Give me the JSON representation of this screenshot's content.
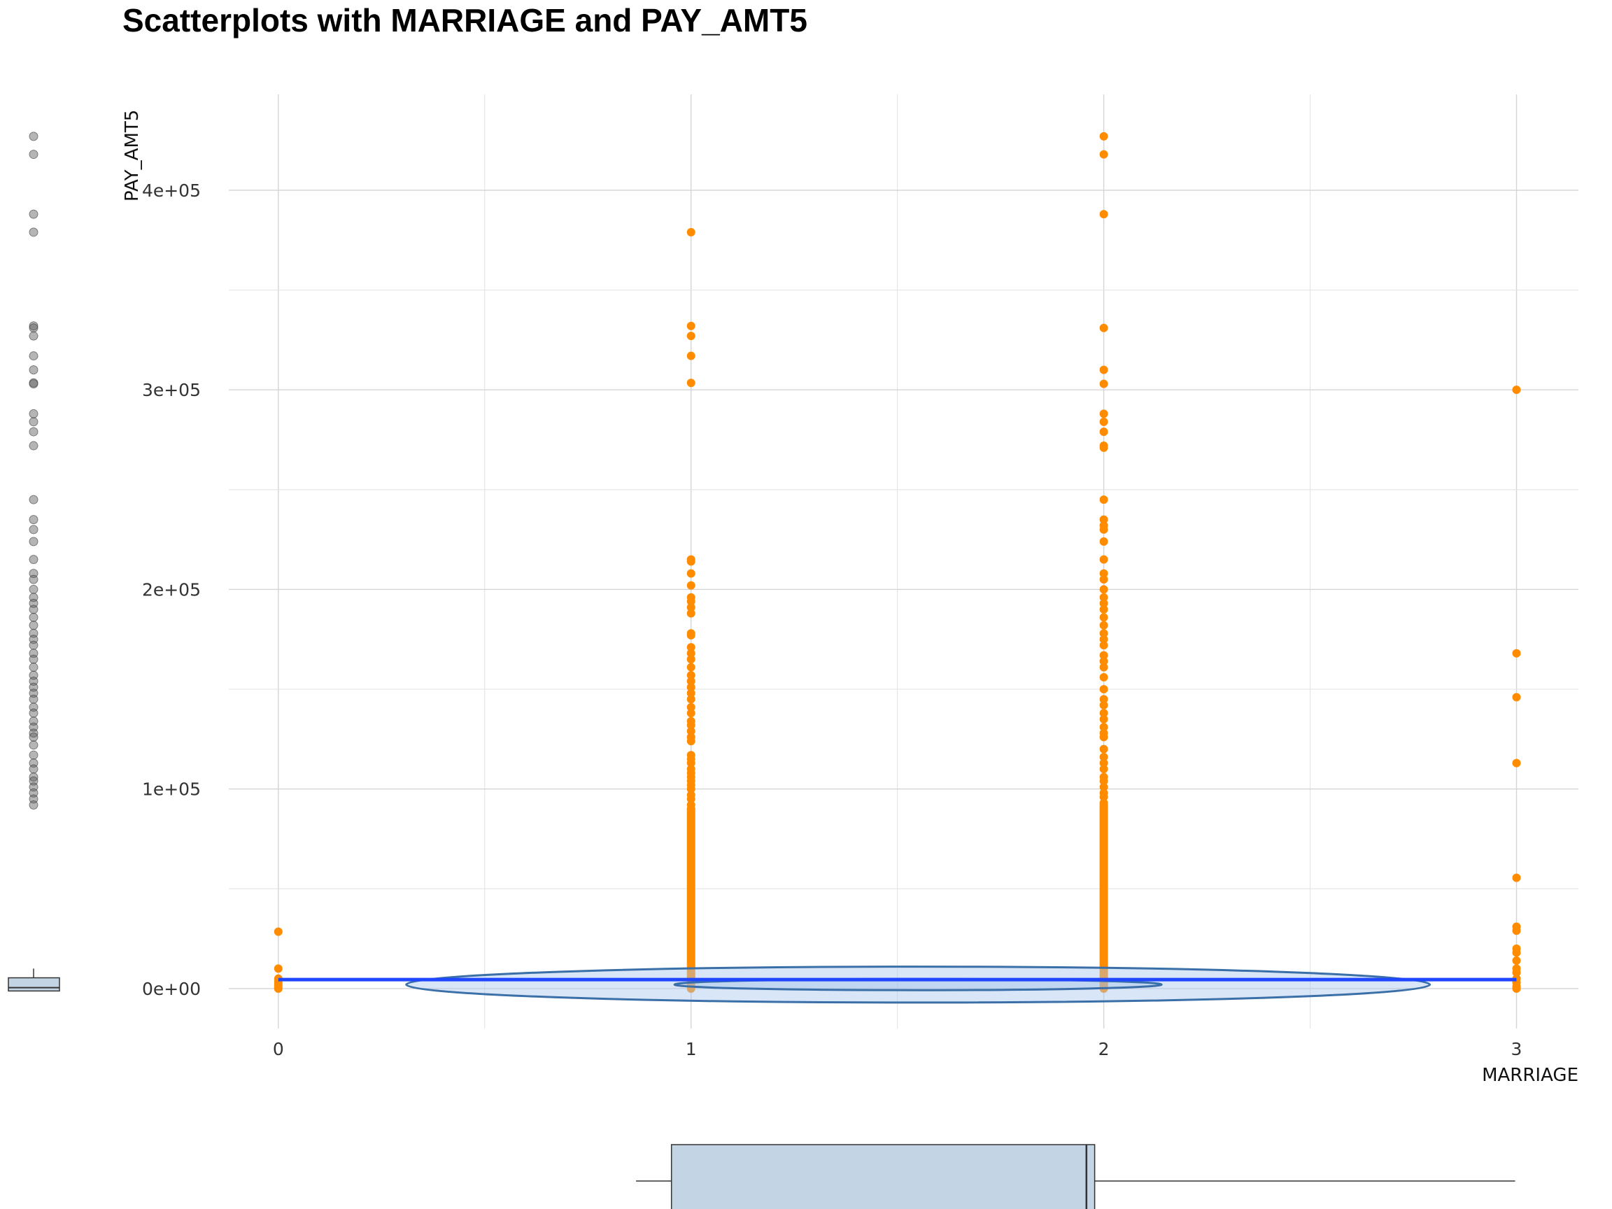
{
  "chart_data": {
    "type": "scatter",
    "title": "Scatterplots with MARRIAGE and PAY_AMT5",
    "xlabel": "MARRIAGE",
    "ylabel": "PAY_AMT5",
    "xlim": [
      -0.12,
      3.15
    ],
    "ylim": [
      -20000,
      448000
    ],
    "x_ticks": [
      0,
      1,
      2,
      3
    ],
    "x_tick_labels": [
      "0",
      "1",
      "2",
      "3"
    ],
    "y_ticks": [
      0,
      100000,
      200000,
      300000,
      400000
    ],
    "y_tick_labels": [
      "0e+00",
      "1e+05",
      "2e+05",
      "3e+05",
      "4e+05"
    ],
    "grid": true,
    "point_color": "#ff8c00",
    "smooth_color": "#2046ff",
    "density_color": "#3a6fa8",
    "boxplot_fill": "#c3d4e4",
    "series": [
      {
        "name": "PAY_AMT5",
        "points": [
          [
            0,
            0
          ],
          [
            0,
            1000
          ],
          [
            0,
            2000
          ],
          [
            0,
            3000
          ],
          [
            0,
            4000
          ],
          [
            0,
            5000
          ],
          [
            0,
            10000
          ],
          [
            0,
            28500
          ],
          [
            1,
            379000
          ],
          [
            1,
            332000
          ],
          [
            1,
            327000
          ],
          [
            1,
            317000
          ],
          [
            1,
            303500
          ],
          [
            1,
            215000
          ],
          [
            1,
            214000
          ],
          [
            1,
            208000
          ],
          [
            1,
            202000
          ],
          [
            1,
            196000
          ],
          [
            1,
            194000
          ],
          [
            1,
            191000
          ],
          [
            1,
            188000
          ],
          [
            1,
            178000
          ],
          [
            1,
            177000
          ],
          [
            1,
            171000
          ],
          [
            1,
            168000
          ],
          [
            1,
            165000
          ],
          [
            1,
            161000
          ],
          [
            1,
            157000
          ],
          [
            1,
            154000
          ],
          [
            1,
            151000
          ],
          [
            1,
            148000
          ],
          [
            1,
            145000
          ],
          [
            1,
            141000
          ],
          [
            1,
            138000
          ],
          [
            1,
            134000
          ],
          [
            1,
            132000
          ],
          [
            1,
            129000
          ],
          [
            1,
            126000
          ],
          [
            1,
            124000
          ],
          [
            1,
            117000
          ],
          [
            1,
            115000
          ],
          [
            1,
            113000
          ],
          [
            1,
            110000
          ],
          [
            1,
            108000
          ],
          [
            1,
            106000
          ],
          [
            1,
            104000
          ],
          [
            1,
            102000
          ],
          [
            1,
            100000
          ],
          [
            1,
            97000
          ],
          [
            1,
            95000
          ],
          [
            1,
            92000
          ],
          [
            1,
            90000
          ],
          [
            2,
            427000
          ],
          [
            2,
            418000
          ],
          [
            2,
            388000
          ],
          [
            2,
            331000
          ],
          [
            2,
            310000
          ],
          [
            2,
            303000
          ],
          [
            2,
            288000
          ],
          [
            2,
            284000
          ],
          [
            2,
            279000
          ],
          [
            2,
            272000
          ],
          [
            2,
            271000
          ],
          [
            2,
            245000
          ],
          [
            2,
            235000
          ],
          [
            2,
            232000
          ],
          [
            2,
            230000
          ],
          [
            2,
            224000
          ],
          [
            2,
            215000
          ],
          [
            2,
            208000
          ],
          [
            2,
            205000
          ],
          [
            2,
            200000
          ],
          [
            2,
            196000
          ],
          [
            2,
            193000
          ],
          [
            2,
            190000
          ],
          [
            2,
            186000
          ],
          [
            2,
            182000
          ],
          [
            2,
            178000
          ],
          [
            2,
            175000
          ],
          [
            2,
            172000
          ],
          [
            2,
            167000
          ],
          [
            2,
            164000
          ],
          [
            2,
            161000
          ],
          [
            2,
            156000
          ],
          [
            2,
            150000
          ],
          [
            2,
            145000
          ],
          [
            2,
            142000
          ],
          [
            2,
            138000
          ],
          [
            2,
            135000
          ],
          [
            2,
            131000
          ],
          [
            2,
            128000
          ],
          [
            2,
            126000
          ],
          [
            2,
            120000
          ],
          [
            2,
            116000
          ],
          [
            2,
            113000
          ],
          [
            2,
            110000
          ],
          [
            2,
            106000
          ],
          [
            2,
            104000
          ],
          [
            2,
            101000
          ],
          [
            2,
            98000
          ],
          [
            2,
            96000
          ],
          [
            2,
            93000
          ],
          [
            3,
            300000
          ],
          [
            3,
            168000
          ],
          [
            3,
            146000
          ],
          [
            3,
            113000
          ],
          [
            3,
            55500
          ],
          [
            3,
            31000
          ],
          [
            3,
            29000
          ],
          [
            3,
            20000
          ],
          [
            3,
            18000
          ],
          [
            3,
            14000
          ],
          [
            3,
            10000
          ],
          [
            3,
            8000
          ],
          [
            3,
            5000
          ],
          [
            3,
            3000
          ],
          [
            3,
            1000
          ],
          [
            3,
            0
          ]
        ],
        "dense_columns": [
          {
            "x": 1,
            "from": 0,
            "to": 90000
          },
          {
            "x": 2,
            "from": 0,
            "to": 92000
          }
        ]
      }
    ],
    "smooth_line": [
      [
        0,
        4500
      ],
      [
        3,
        4500
      ]
    ],
    "density_ellipses": [
      {
        "cx": 1.55,
        "cy": 2000,
        "rx": 1.24,
        "ry": 9000
      },
      {
        "cx": 1.55,
        "cy": 2000,
        "rx": 0.59,
        "ry": 2800
      }
    ],
    "marginal_y_boxplot": {
      "q1": 200,
      "median": 1500,
      "q3": 4000,
      "whisker_high": 10000,
      "outliers": [
        427000,
        418000,
        388000,
        379000,
        332000,
        331000,
        327000,
        317000,
        310000,
        303500,
        303000,
        288000,
        284000,
        279000,
        272000,
        245000,
        235000,
        230000,
        224000,
        215000,
        208000,
        205000,
        200000,
        196000,
        193000,
        190000,
        186000,
        182000,
        178000,
        175000,
        172000,
        168000,
        165000,
        161000,
        157000,
        154000,
        151000,
        148000,
        145000,
        141000,
        138000,
        134000,
        131000,
        128000,
        126000,
        122000,
        117000,
        113000,
        110000,
        106000,
        104000,
        101000,
        98000,
        95000,
        92000
      ]
    },
    "marginal_x_boxplot": {
      "min": 0.87,
      "q1": 1,
      "median": 1.98,
      "q3": 2,
      "max": 3
    }
  }
}
